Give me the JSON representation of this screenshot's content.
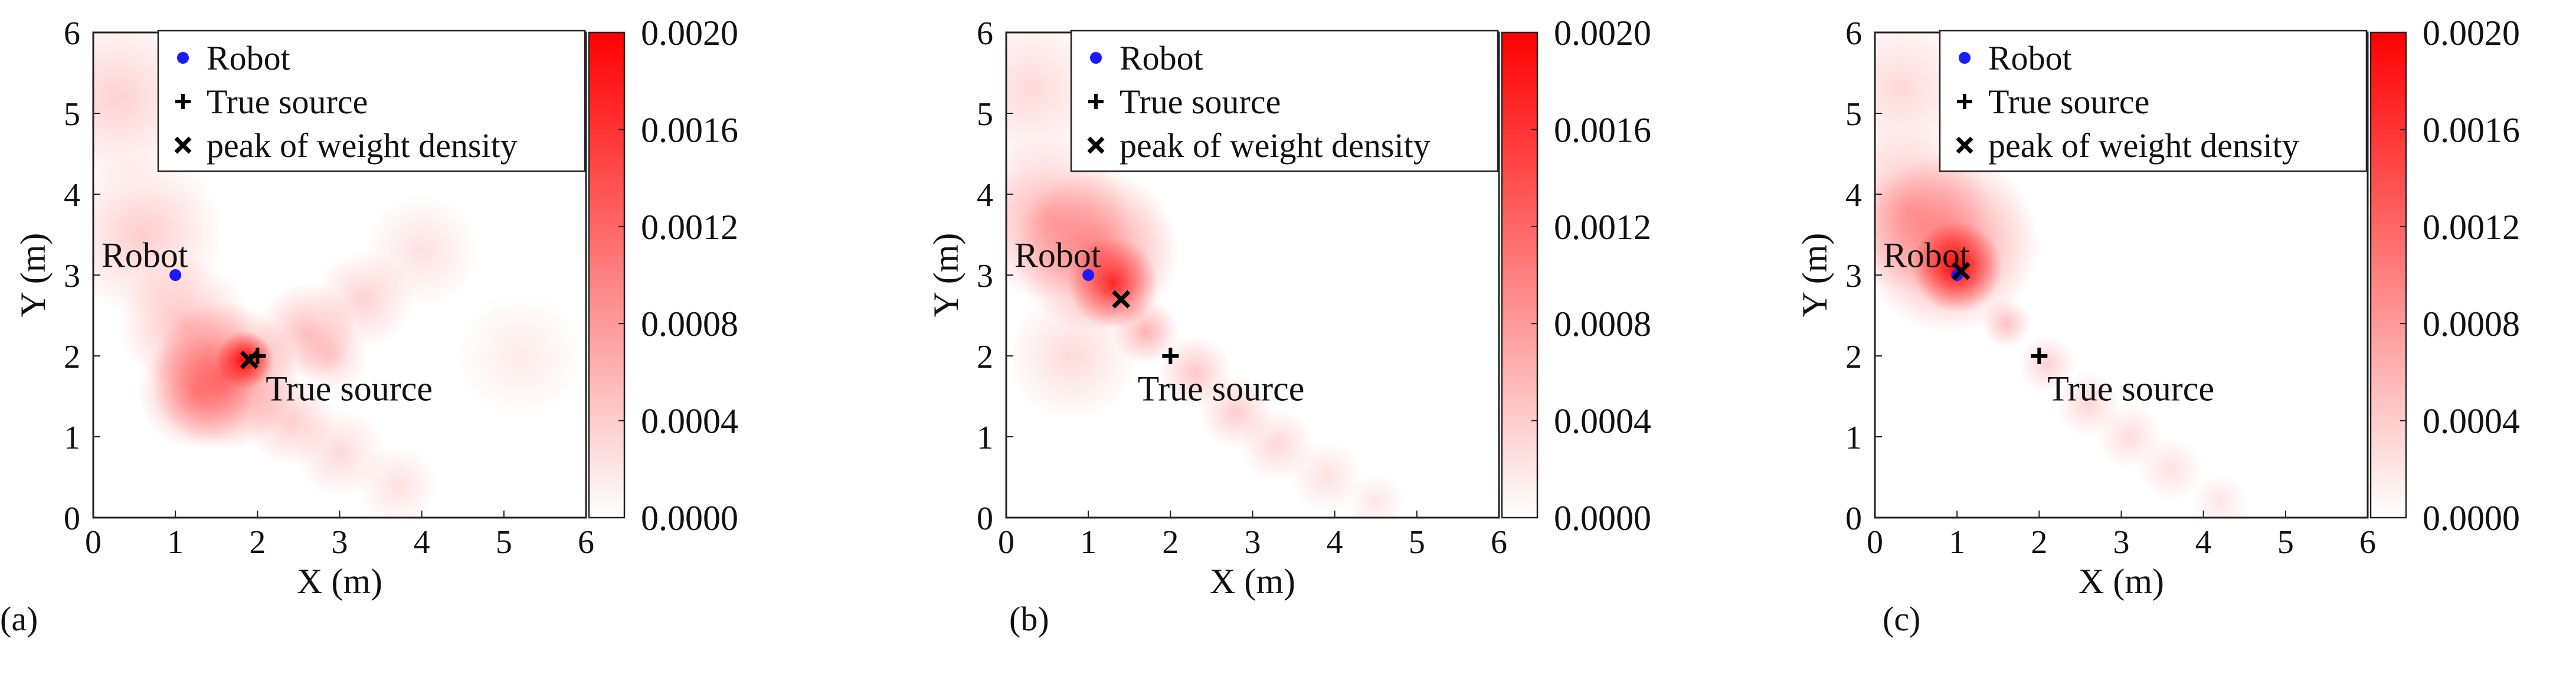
{
  "chart_data": [
    {
      "type": "heatmap",
      "panel_label": "(a)",
      "xlabel": "X (m)",
      "ylabel": "Y (m)",
      "xlim": [
        0,
        6
      ],
      "ylim": [
        0,
        6
      ],
      "xticks": [
        "0",
        "1",
        "2",
        "3",
        "4",
        "5",
        "6"
      ],
      "yticks": [
        "0",
        "1",
        "2",
        "3",
        "4",
        "5",
        "6"
      ],
      "colorbar": {
        "min": 0.0,
        "max": 0.002,
        "ticks": [
          "0.0000",
          "0.0004",
          "0.0008",
          "0.0012",
          "0.0016",
          "0.0020"
        ],
        "low_color": "#ffffff",
        "high_color": "#ff0000"
      },
      "legend": [
        {
          "marker": "dot",
          "label": "Robot"
        },
        {
          "marker": "plus",
          "label": "True source"
        },
        {
          "marker": "cross",
          "label": "peak of weight density"
        }
      ],
      "robot": {
        "x": 1.0,
        "y": 3.0
      },
      "true_source": {
        "x": 2.0,
        "y": 2.0
      },
      "peak": {
        "x": 1.9,
        "y": 1.95
      },
      "annotations": [
        {
          "text": "Robot",
          "x": 0.1,
          "y": 3.1
        },
        {
          "text": "True source",
          "x": 2.1,
          "y": 1.45
        }
      ],
      "density_blobs": [
        {
          "x": 1.85,
          "y": 1.95,
          "r": 0.35,
          "v": 1.0
        },
        {
          "x": 1.6,
          "y": 1.75,
          "r": 0.9,
          "v": 0.55
        },
        {
          "x": 1.25,
          "y": 1.55,
          "r": 0.7,
          "v": 0.35
        },
        {
          "x": 0.6,
          "y": 3.5,
          "r": 1.0,
          "v": 0.2
        },
        {
          "x": 0.3,
          "y": 5.2,
          "r": 1.1,
          "v": 0.18
        },
        {
          "x": 1.1,
          "y": 2.4,
          "r": 0.8,
          "v": 0.25
        },
        {
          "x": 2.6,
          "y": 2.3,
          "r": 0.6,
          "v": 0.25
        },
        {
          "x": 3.3,
          "y": 2.7,
          "r": 0.6,
          "v": 0.18
        },
        {
          "x": 4.0,
          "y": 3.3,
          "r": 0.7,
          "v": 0.12
        },
        {
          "x": 2.4,
          "y": 1.2,
          "r": 0.55,
          "v": 0.2
        },
        {
          "x": 3.0,
          "y": 0.8,
          "r": 0.55,
          "v": 0.15
        },
        {
          "x": 3.7,
          "y": 0.4,
          "r": 0.5,
          "v": 0.12
        },
        {
          "x": 5.2,
          "y": 2.0,
          "r": 0.8,
          "v": 0.08
        },
        {
          "x": 2.9,
          "y": 2.0,
          "r": 0.45,
          "v": 0.18
        }
      ]
    },
    {
      "type": "heatmap",
      "panel_label": "(b)",
      "xlabel": "X (m)",
      "ylabel": "Y (m)",
      "xlim": [
        0,
        6
      ],
      "ylim": [
        0,
        6
      ],
      "xticks": [
        "0",
        "1",
        "2",
        "3",
        "4",
        "5",
        "6"
      ],
      "yticks": [
        "0",
        "1",
        "2",
        "3",
        "4",
        "5",
        "6"
      ],
      "colorbar": {
        "min": 0.0,
        "max": 0.002,
        "ticks": [
          "0.0000",
          "0.0004",
          "0.0008",
          "0.0012",
          "0.0016",
          "0.0020"
        ],
        "low_color": "#ffffff",
        "high_color": "#ff0000"
      },
      "legend": [
        {
          "marker": "dot",
          "label": "Robot"
        },
        {
          "marker": "plus",
          "label": "True source"
        },
        {
          "marker": "cross",
          "label": "peak of weight density"
        }
      ],
      "robot": {
        "x": 1.0,
        "y": 3.0
      },
      "true_source": {
        "x": 2.0,
        "y": 2.0
      },
      "peak": {
        "x": 1.4,
        "y": 2.7
      },
      "annotations": [
        {
          "text": "Robot",
          "x": 0.1,
          "y": 3.1
        },
        {
          "text": "True source",
          "x": 1.6,
          "y": 1.45
        }
      ],
      "density_blobs": [
        {
          "x": 1.3,
          "y": 2.9,
          "r": 0.55,
          "v": 0.8
        },
        {
          "x": 1.1,
          "y": 3.3,
          "r": 1.0,
          "v": 0.45
        },
        {
          "x": 0.5,
          "y": 3.7,
          "r": 1.0,
          "v": 0.3
        },
        {
          "x": 0.3,
          "y": 5.3,
          "r": 1.0,
          "v": 0.15
        },
        {
          "x": 1.7,
          "y": 2.3,
          "r": 0.4,
          "v": 0.3
        },
        {
          "x": 2.3,
          "y": 1.8,
          "r": 0.45,
          "v": 0.22
        },
        {
          "x": 2.8,
          "y": 1.3,
          "r": 0.45,
          "v": 0.2
        },
        {
          "x": 3.3,
          "y": 0.9,
          "r": 0.45,
          "v": 0.16
        },
        {
          "x": 3.9,
          "y": 0.5,
          "r": 0.45,
          "v": 0.12
        },
        {
          "x": 4.5,
          "y": 0.2,
          "r": 0.35,
          "v": 0.1
        },
        {
          "x": 0.8,
          "y": 2.0,
          "r": 0.8,
          "v": 0.15
        }
      ]
    },
    {
      "type": "heatmap",
      "panel_label": "(c)",
      "xlabel": "X (m)",
      "ylabel": "Y (m)",
      "xlim": [
        0,
        6
      ],
      "ylim": [
        0,
        6
      ],
      "xticks": [
        "0",
        "1",
        "2",
        "3",
        "4",
        "5",
        "6"
      ],
      "yticks": [
        "0",
        "1",
        "2",
        "3",
        "4",
        "5",
        "6"
      ],
      "colorbar": {
        "min": 0.0,
        "max": 0.002,
        "ticks": [
          "0.0000",
          "0.0004",
          "0.0008",
          "0.0012",
          "0.0016",
          "0.0020"
        ],
        "low_color": "#ffffff",
        "high_color": "#ff0000"
      },
      "legend": [
        {
          "marker": "dot",
          "label": "Robot"
        },
        {
          "marker": "plus",
          "label": "True source"
        },
        {
          "marker": "cross",
          "label": "peak of weight density"
        }
      ],
      "robot": {
        "x": 1.0,
        "y": 3.0
      },
      "true_source": {
        "x": 2.0,
        "y": 2.0
      },
      "peak": {
        "x": 1.05,
        "y": 3.05
      },
      "annotations": [
        {
          "text": "Robot",
          "x": 0.1,
          "y": 3.1
        },
        {
          "text": "True source",
          "x": 2.1,
          "y": 1.45
        }
      ],
      "density_blobs": [
        {
          "x": 1.0,
          "y": 3.1,
          "r": 0.55,
          "v": 1.0
        },
        {
          "x": 0.9,
          "y": 3.4,
          "r": 1.1,
          "v": 0.45
        },
        {
          "x": 0.4,
          "y": 3.8,
          "r": 1.0,
          "v": 0.3
        },
        {
          "x": 0.3,
          "y": 5.3,
          "r": 1.0,
          "v": 0.15
        },
        {
          "x": 1.6,
          "y": 2.4,
          "r": 0.3,
          "v": 0.25
        },
        {
          "x": 2.1,
          "y": 1.9,
          "r": 0.35,
          "v": 0.18
        },
        {
          "x": 2.6,
          "y": 1.4,
          "r": 0.4,
          "v": 0.16
        },
        {
          "x": 3.1,
          "y": 1.0,
          "r": 0.4,
          "v": 0.14
        },
        {
          "x": 3.6,
          "y": 0.6,
          "r": 0.4,
          "v": 0.12
        },
        {
          "x": 4.2,
          "y": 0.2,
          "r": 0.35,
          "v": 0.1
        }
      ]
    }
  ]
}
